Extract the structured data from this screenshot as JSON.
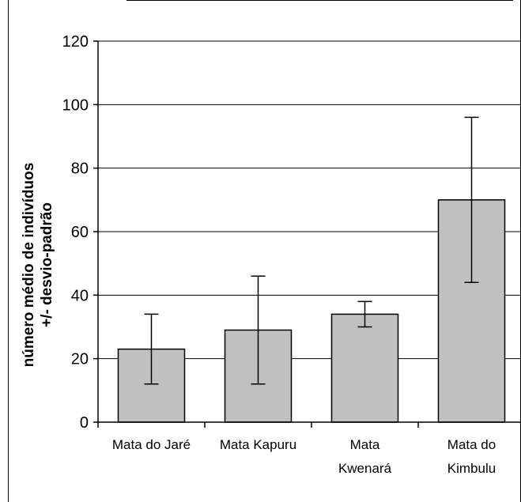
{
  "chart_data": {
    "type": "bar",
    "categories": [
      [
        "Mata do Jaré"
      ],
      [
        "Mata Kapuru"
      ],
      [
        "Mata",
        "Kwenará"
      ],
      [
        "Mata do",
        "Kimbulu"
      ]
    ],
    "values": [
      23,
      29,
      34,
      70
    ],
    "error_low": [
      12,
      12,
      30,
      44
    ],
    "error_high": [
      34,
      46,
      38,
      96
    ],
    "ylabel_lines": [
      "número médio de indivíduos",
      "+/- desvio-padrão"
    ],
    "ylim": [
      0,
      120
    ],
    "yticks": [
      0,
      20,
      40,
      60,
      80,
      100,
      120
    ],
    "grid": true,
    "colors": {
      "bar_fill": "#c0c0c0",
      "bar_stroke": "#000000",
      "grid": "#000000"
    }
  }
}
